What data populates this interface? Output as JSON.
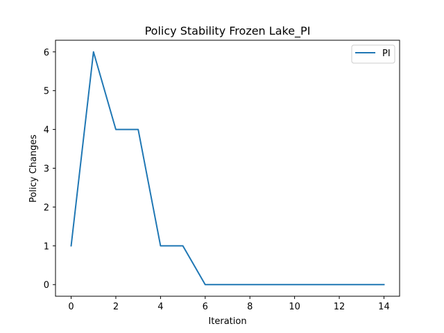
{
  "chart_data": {
    "type": "line",
    "title": "Policy Stability Frozen Lake_PI",
    "xlabel": "Iteration",
    "ylabel": "Policy Changes",
    "x": [
      0,
      1,
      2,
      3,
      4,
      5,
      6,
      7,
      8,
      9,
      10,
      11,
      12,
      13,
      14
    ],
    "series": [
      {
        "name": "PI",
        "color": "#1f77b4",
        "values": [
          1,
          6,
          4,
          4,
          1,
          1,
          0,
          0,
          0,
          0,
          0,
          0,
          0,
          0,
          0
        ]
      }
    ],
    "xlim": [
      -0.7,
      14.7
    ],
    "ylim": [
      -0.3,
      6.3
    ],
    "xticks": [
      0,
      2,
      4,
      6,
      8,
      10,
      12,
      14
    ],
    "yticks": [
      0,
      1,
      2,
      3,
      4,
      5,
      6
    ],
    "grid": false,
    "legend": "top-right"
  }
}
